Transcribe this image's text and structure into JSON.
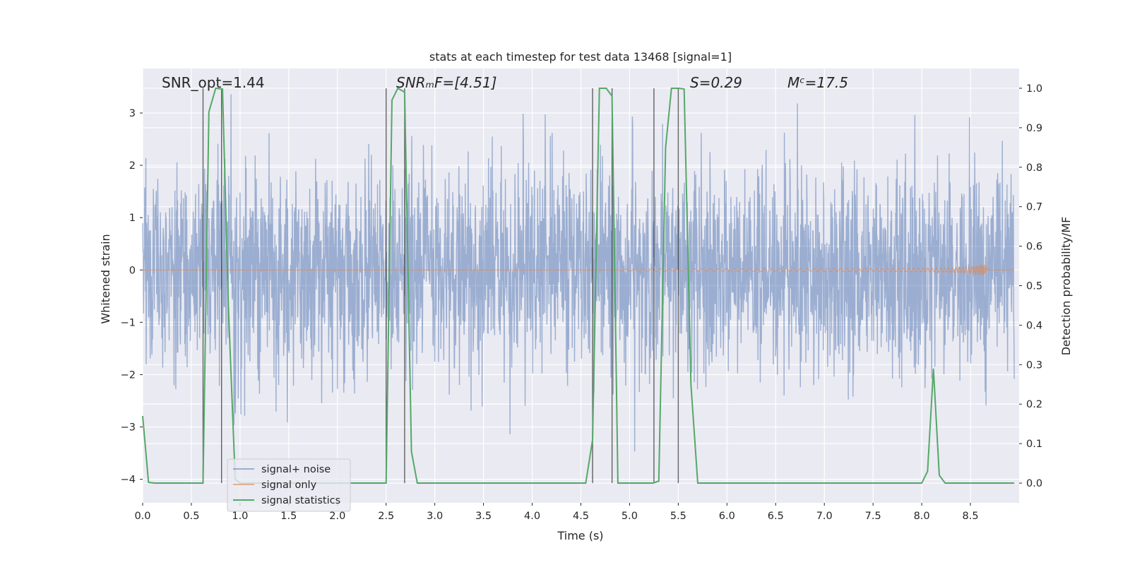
{
  "chart_data": {
    "type": "line",
    "title": "stats at each timestep for test data 13468 [signal=1]",
    "xlabel": "Time (s)",
    "ylabel": "Whitened strain",
    "y2label": "Detection probability/MF",
    "xlim": [
      0,
      9
    ],
    "ylim": [
      -4.45,
      3.85
    ],
    "y2lim": [
      -0.05,
      1.05
    ],
    "x_ticks": [
      0.0,
      0.5,
      1.0,
      1.5,
      2.0,
      2.5,
      3.0,
      3.5,
      4.0,
      4.5,
      5.0,
      5.5,
      6.0,
      6.5,
      7.0,
      7.5,
      8.0,
      8.5
    ],
    "x_tick_labels": [
      "0.0",
      "0.5",
      "1.0",
      "1.5",
      "2.0",
      "2.5",
      "3.0",
      "3.5",
      "4.0",
      "4.5",
      "5.0",
      "5.5",
      "6.0",
      "6.5",
      "7.0",
      "7.5",
      "8.0",
      "8.5"
    ],
    "y_ticks": [
      -4,
      -3,
      -2,
      -1,
      0,
      1,
      2,
      3
    ],
    "y_tick_labels": [
      "−4",
      "−3",
      "−2",
      "−1",
      "0",
      "1",
      "2",
      "3"
    ],
    "y2_ticks": [
      0.0,
      0.1,
      0.2,
      0.3,
      0.4,
      0.5,
      0.6,
      0.7,
      0.8,
      0.9,
      1.0
    ],
    "y2_tick_labels": [
      "0.0",
      "0.1",
      "0.2",
      "0.3",
      "0.4",
      "0.5",
      "0.6",
      "0.7",
      "0.8",
      "0.9",
      "1.0"
    ],
    "grid": true,
    "legend_position": "lower-left",
    "colors": {
      "background": "#eaeaf2",
      "grid": "#ffffff",
      "noise": "#4c72b0",
      "signal": "#dd8452",
      "stats": "#55a868",
      "markers": "#333333"
    },
    "annotations": [
      {
        "id": "snr-opt",
        "text": "SNR_opt=1.44",
        "x": 0.18,
        "y": 3.7
      },
      {
        "id": "snr-mf",
        "text": "SNRₘF=[4.51]",
        "x": 2.6,
        "y": 3.7
      },
      {
        "id": "s-value",
        "text": "S=0.29",
        "x": 5.6,
        "y": 3.7
      },
      {
        "id": "mc-value",
        "text": "Mᶜ=17.5",
        "x": 6.6,
        "y": 3.7
      }
    ],
    "series": [
      {
        "name": "signal+ noise",
        "axis": "left",
        "description_values": "dense whitened noise, bulk amplitude about ±1.5 with spikes to about ±3.5",
        "seed": 13468,
        "n_samples": 3000,
        "sigma": 1.0
      },
      {
        "name": "signal only",
        "axis": "left",
        "chirp_start": 4.9,
        "chirp_end": 8.67,
        "peak_amplitude": 0.28
      },
      {
        "name": "signal statistics",
        "axis": "right",
        "x": [
          0.0,
          0.06,
          0.12,
          0.62,
          0.68,
          0.75,
          0.82,
          0.88,
          0.95,
          1.0,
          2.5,
          2.56,
          2.62,
          2.69,
          2.76,
          2.82,
          2.88,
          2.95,
          4.55,
          4.62,
          4.69,
          4.76,
          4.82,
          4.88,
          4.95,
          5.24,
          5.3,
          5.37,
          5.43,
          5.5,
          5.56,
          5.63,
          5.7,
          8.0,
          8.06,
          8.12,
          8.18,
          8.24,
          8.3,
          8.95
        ],
        "y": [
          0.17,
          0.002,
          0.0,
          0.0,
          0.94,
          1.0,
          0.998,
          0.45,
          0.01,
          0.0,
          0.0,
          0.97,
          1.0,
          0.99,
          0.08,
          0.0,
          0.0,
          0.0,
          0.0,
          0.11,
          1.0,
          1.0,
          0.98,
          0.0,
          0.0,
          0.0,
          0.005,
          0.85,
          1.0,
          1.0,
          0.998,
          0.25,
          0.0,
          0.0,
          0.03,
          0.29,
          0.02,
          0.0,
          0.0,
          0.0
        ]
      }
    ],
    "vertical_markers": [
      0.62,
      0.81,
      2.5,
      2.69,
      4.62,
      4.82,
      5.25,
      5.5
    ],
    "vertical_marker_ymax": 1.0
  }
}
